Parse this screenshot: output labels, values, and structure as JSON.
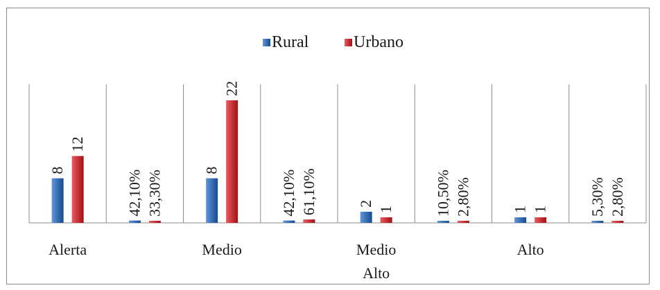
{
  "chart_data": {
    "type": "bar",
    "title": "",
    "xlabel": "",
    "ylabel": "",
    "ylim": [
      0,
      25
    ],
    "grid": false,
    "legend_position": "top-center",
    "colors": {
      "Rural": "#3f73b8",
      "Urbano": "#c8383c"
    },
    "categories": [
      "Alerta",
      "",
      "Medio",
      "",
      "Medio\nAlto",
      "",
      "Alto",
      ""
    ],
    "series": [
      {
        "name": "Rural",
        "values": [
          8,
          0.421,
          8,
          0.421,
          2,
          0.105,
          1,
          0.053
        ],
        "labels": [
          "8",
          "42,10%",
          "8",
          "42,10%",
          "2",
          "10,50%",
          "1",
          "5,30%"
        ]
      },
      {
        "name": "Urbano",
        "values": [
          12,
          0.333,
          22,
          0.611,
          1,
          0.028,
          1,
          0.028
        ],
        "labels": [
          "12",
          "33,30%",
          "22",
          "61,10%",
          "1",
          "2,80%",
          "1",
          "2,80%"
        ]
      }
    ]
  }
}
